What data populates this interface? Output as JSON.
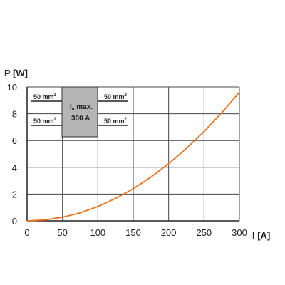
{
  "chart_data": {
    "type": "line",
    "title": "",
    "xlabel": "I [A]",
    "ylabel": "P [W]",
    "xlim": [
      0,
      300
    ],
    "ylim": [
      0,
      10
    ],
    "xticks": [
      0,
      50,
      100,
      150,
      200,
      250,
      300
    ],
    "yticks": [
      0,
      2,
      4,
      6,
      8,
      10
    ],
    "grid": true,
    "series": [
      {
        "color": "#E8731E",
        "x": [
          0,
          25,
          50,
          75,
          100,
          125,
          150,
          175,
          200,
          225,
          250,
          275,
          300
        ],
        "y": [
          0,
          0.07,
          0.27,
          0.6,
          1.07,
          1.67,
          2.4,
          3.27,
          4.27,
          5.4,
          6.67,
          8.07,
          9.6
        ]
      }
    ],
    "annotation": {
      "wires": [
        {
          "label": "50 mm",
          "sup": "2",
          "side": "left",
          "row": "top"
        },
        {
          "label": "50 mm",
          "sup": "2",
          "side": "right",
          "row": "top"
        },
        {
          "label": "50 mm",
          "sup": "2",
          "side": "left",
          "row": "bottom"
        },
        {
          "label": "50 mm",
          "sup": "2",
          "side": "right",
          "row": "bottom"
        }
      ],
      "box_line1_main": "I",
      "box_line1_sub": "n",
      "box_line1_rest": " max.",
      "box_line2": "300 A"
    }
  }
}
